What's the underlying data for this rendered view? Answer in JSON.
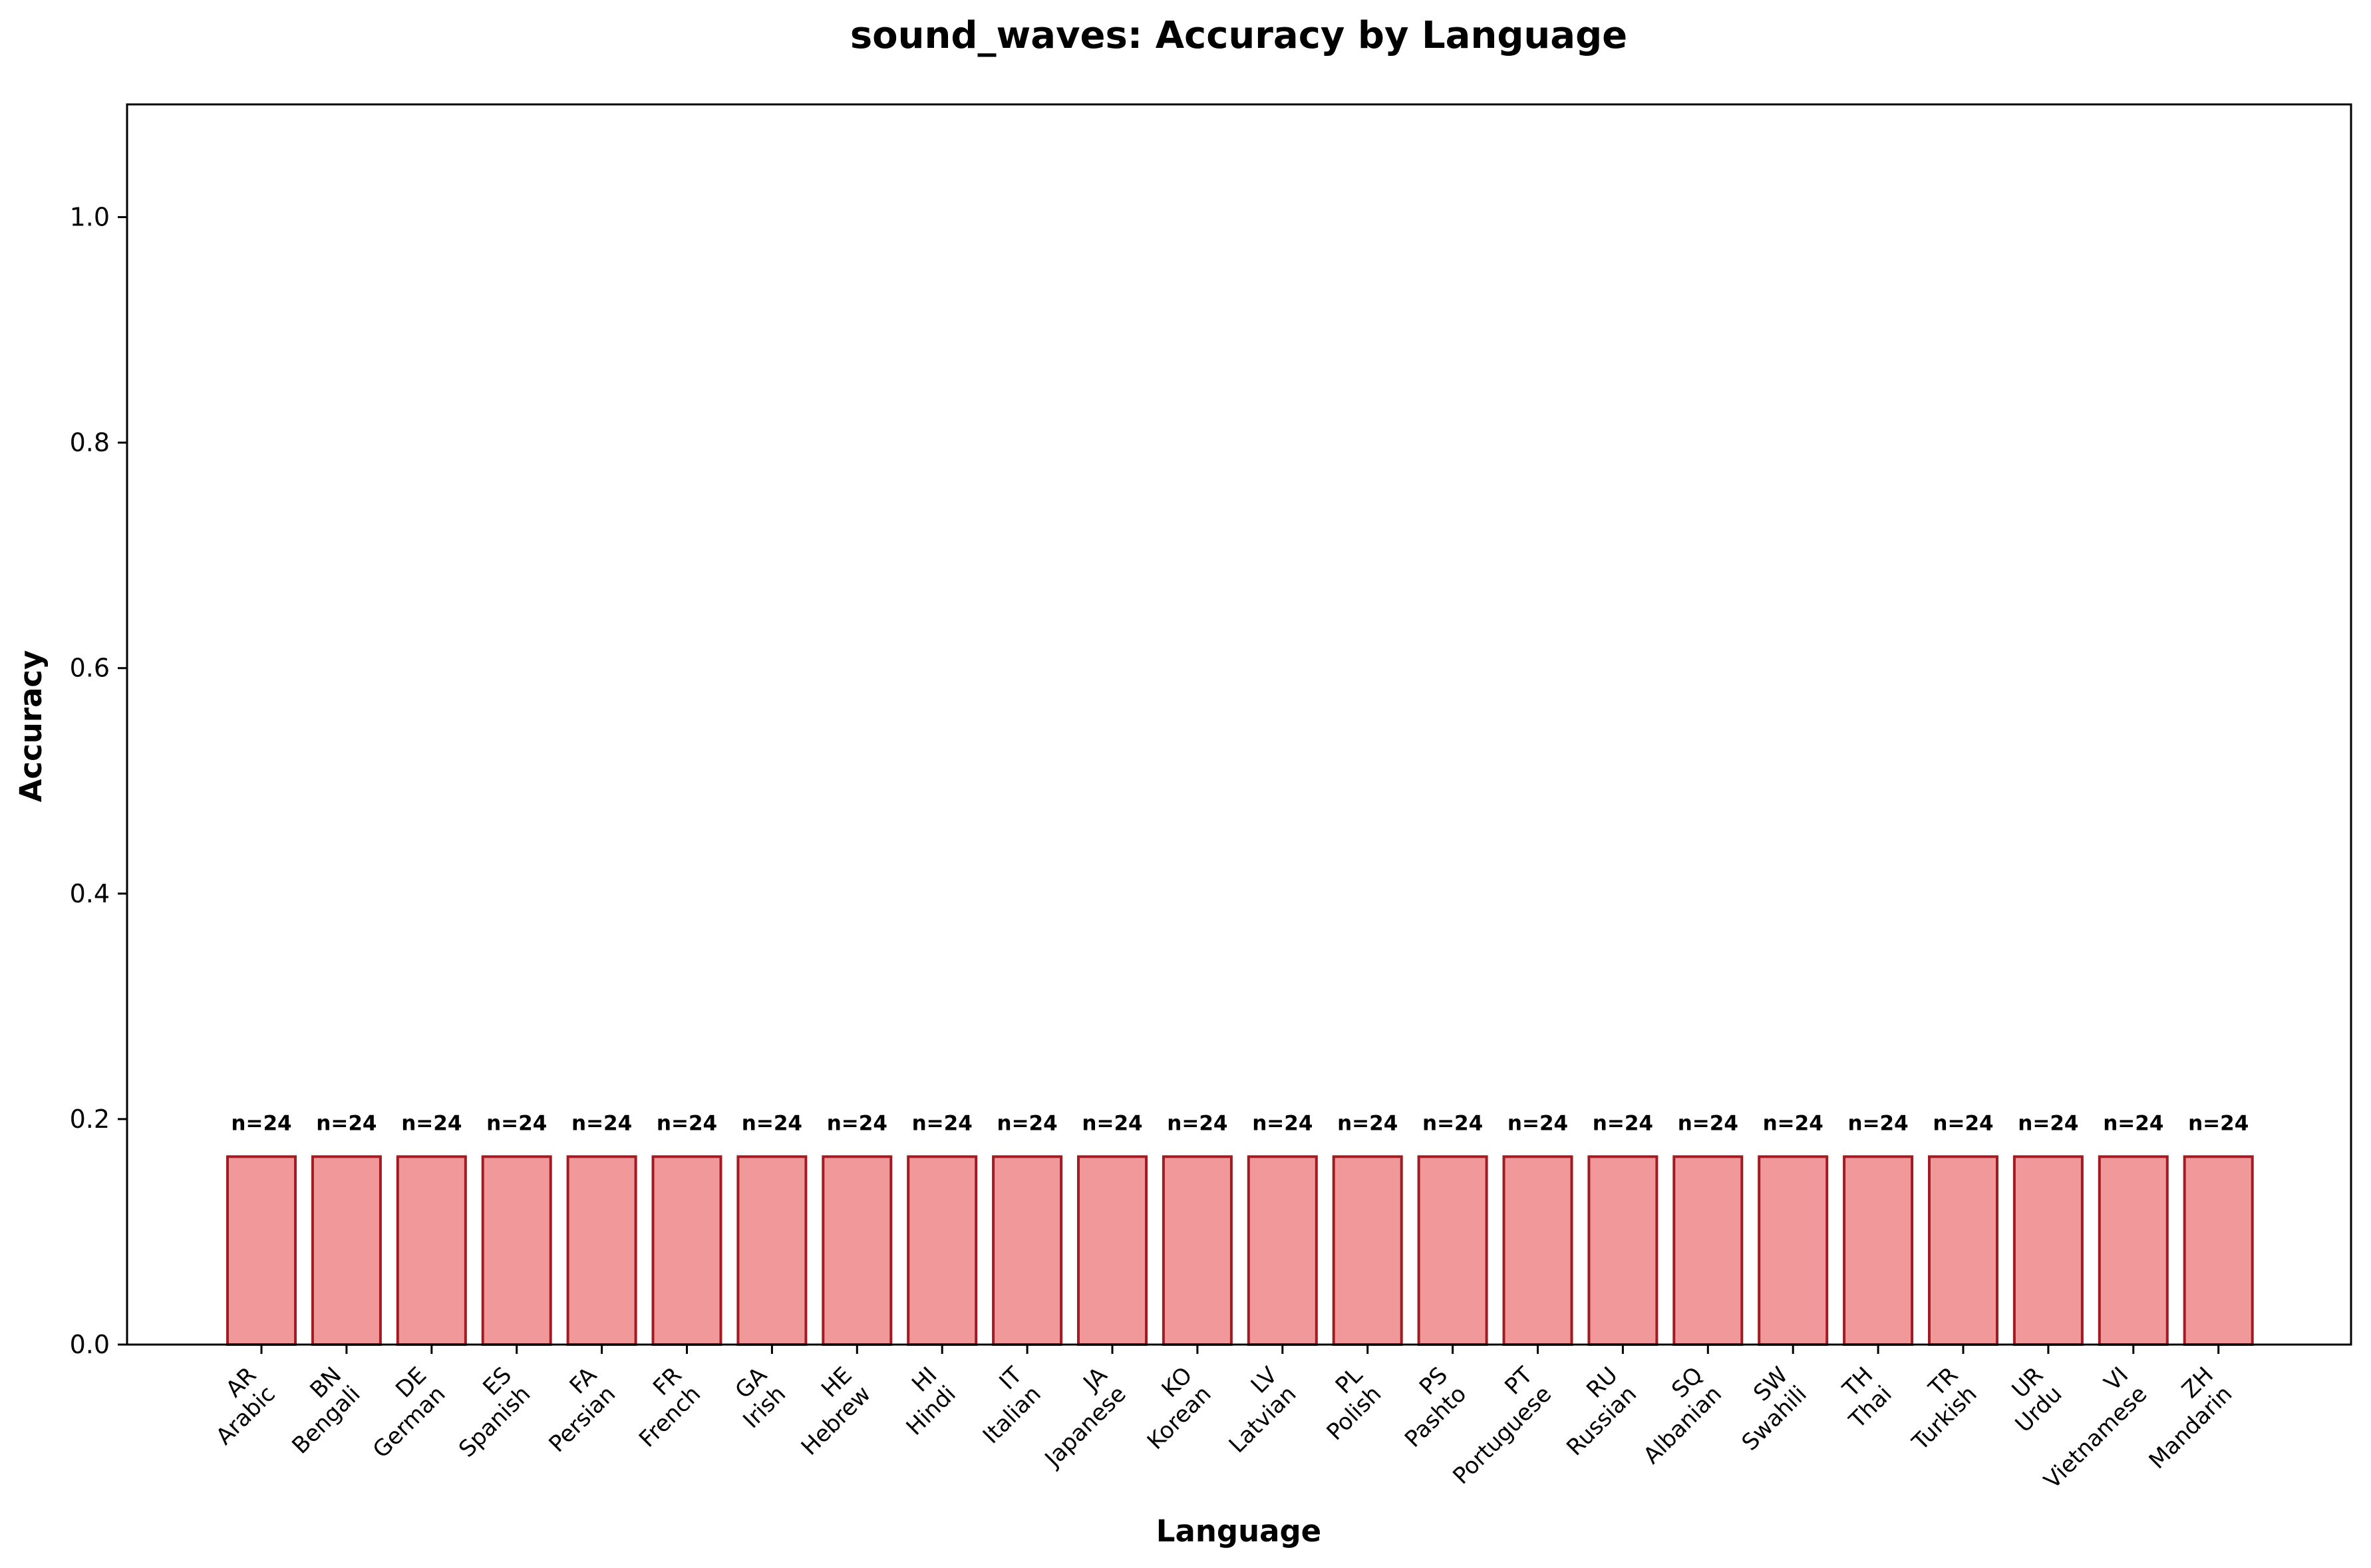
{
  "chart_data": {
    "type": "bar",
    "title": "sound_waves: Accuracy by Language",
    "xlabel": "Language",
    "ylabel": "Accuracy",
    "ylim": [
      0,
      1.1
    ],
    "yticks": [
      "0.0",
      "0.2",
      "0.4",
      "0.6",
      "0.8",
      "1.0"
    ],
    "grid": false,
    "categories": [
      {
        "code": "AR",
        "name": "Arabic"
      },
      {
        "code": "BN",
        "name": "Bengali"
      },
      {
        "code": "DE",
        "name": "German"
      },
      {
        "code": "ES",
        "name": "Spanish"
      },
      {
        "code": "FA",
        "name": "Persian"
      },
      {
        "code": "FR",
        "name": "French"
      },
      {
        "code": "GA",
        "name": "Irish"
      },
      {
        "code": "HE",
        "name": "Hebrew"
      },
      {
        "code": "HI",
        "name": "Hindi"
      },
      {
        "code": "IT",
        "name": "Italian"
      },
      {
        "code": "JA",
        "name": "Japanese"
      },
      {
        "code": "KO",
        "name": "Korean"
      },
      {
        "code": "LV",
        "name": "Latvian"
      },
      {
        "code": "PL",
        "name": "Polish"
      },
      {
        "code": "PS",
        "name": "Pashto"
      },
      {
        "code": "PT",
        "name": "Portuguese"
      },
      {
        "code": "RU",
        "name": "Russian"
      },
      {
        "code": "SQ",
        "name": "Albanian"
      },
      {
        "code": "SW",
        "name": "Swahili"
      },
      {
        "code": "TH",
        "name": "Thai"
      },
      {
        "code": "TR",
        "name": "Turkish"
      },
      {
        "code": "UR",
        "name": "Urdu"
      },
      {
        "code": "VI",
        "name": "Vietnamese"
      },
      {
        "code": "ZH",
        "name": "Mandarin"
      }
    ],
    "values": [
      0.1667,
      0.1667,
      0.1667,
      0.1667,
      0.1667,
      0.1667,
      0.1667,
      0.1667,
      0.1667,
      0.1667,
      0.1667,
      0.1667,
      0.1667,
      0.1667,
      0.1667,
      0.1667,
      0.1667,
      0.1667,
      0.1667,
      0.1667,
      0.1667,
      0.1667,
      0.1667,
      0.1667
    ],
    "bar_labels": [
      "n=24",
      "n=24",
      "n=24",
      "n=24",
      "n=24",
      "n=24",
      "n=24",
      "n=24",
      "n=24",
      "n=24",
      "n=24",
      "n=24",
      "n=24",
      "n=24",
      "n=24",
      "n=24",
      "n=24",
      "n=24",
      "n=24",
      "n=24",
      "n=24",
      "n=24",
      "n=24",
      "n=24"
    ],
    "colors": {
      "bar_fill": "#f1999a",
      "bar_edge": "#a01c22",
      "axes": "#000000"
    }
  }
}
